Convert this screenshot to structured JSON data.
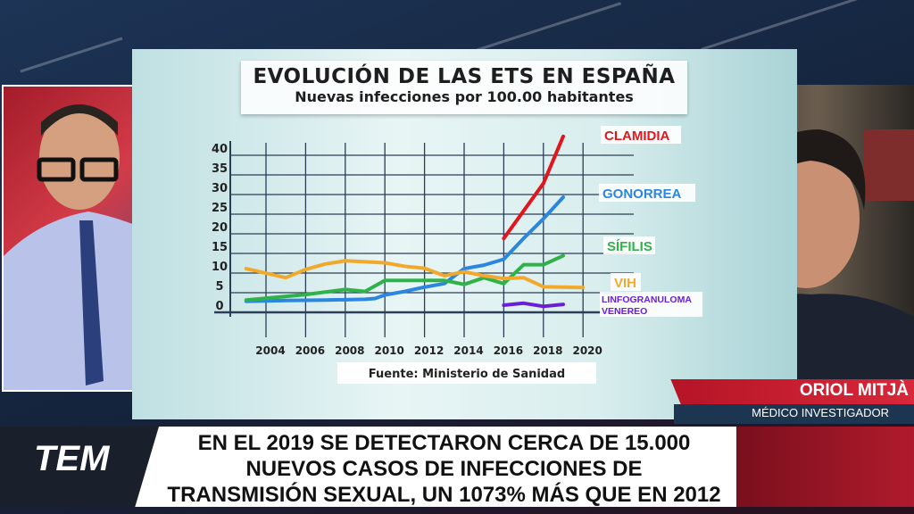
{
  "chart_data": {
    "type": "line",
    "title": "EVOLUCIÓN DE LAS ETS EN ESPAÑA",
    "subtitle": "Nuevas infecciones por 100.00 habitantes",
    "source": "Fuente: Ministerio de Sanidad",
    "x_ticks": [
      "2004",
      "2006",
      "2008",
      "2010",
      "2012",
      "2014",
      "2016",
      "2018",
      "2020"
    ],
    "y_ticks": [
      "0",
      "5",
      "10",
      "15",
      "20",
      "25",
      "30",
      "35",
      "40"
    ],
    "xlim": [
      2002.5,
      2021
    ],
    "ylim": [
      0,
      40
    ],
    "grid": true,
    "series": [
      {
        "name": "CLAMIDIA",
        "color": "#e0161c",
        "x": [
          2016,
          2018,
          2019
        ],
        "y": [
          17,
          31,
          43
        ]
      },
      {
        "name": "GONORREA",
        "color": "#2b86e0",
        "x": [
          2003,
          2005,
          2007,
          2009,
          2009.5,
          2010,
          2011,
          2012,
          2013,
          2014,
          2015,
          2016,
          2017,
          2018,
          2019
        ],
        "y": [
          1,
          1.2,
          1.3,
          1.5,
          1.7,
          2.6,
          3.5,
          4.6,
          5.5,
          9.3,
          10.2,
          11.7,
          17,
          22,
          27.5
        ]
      },
      {
        "name": "SÍFILIS",
        "color": "#2fb24a",
        "x": [
          2003,
          2006,
          2008,
          2009,
          2010,
          2013,
          2014,
          2015,
          2016,
          2017,
          2018,
          2019
        ],
        "y": [
          1.3,
          2.7,
          4,
          3.5,
          6.3,
          6.3,
          5.3,
          7,
          5.5,
          10.3,
          10.3,
          12.6
        ]
      },
      {
        "name": "VIH",
        "color": "#f0a92c",
        "x": [
          2003,
          2005,
          2006,
          2007,
          2008,
          2010,
          2011,
          2012,
          2013,
          2014,
          2015,
          2016,
          2017,
          2018,
          2020
        ],
        "y": [
          9.3,
          7,
          9.1,
          10.5,
          11.3,
          10.8,
          9.9,
          9.4,
          7.5,
          8.5,
          7.5,
          6.8,
          7,
          4.7,
          4.5
        ]
      },
      {
        "name": "LINFOGRANULOMA VENEREO",
        "color": "#6a1fd6",
        "x": [
          2016,
          2017,
          2018,
          2019
        ],
        "y": [
          0,
          0.5,
          -0.3,
          0.2
        ]
      }
    ]
  },
  "lower_third": {
    "name": "ORIOL MITJÀ",
    "role": "MÉDICO INVESTIGADOR"
  },
  "banner": {
    "logo": "TEM",
    "lines": [
      "EN EL 2019 SE DETECTARON CERCA DE 15.000",
      "NUEVOS CASOS DE INFECCIONES DE",
      "TRANSMISIÓN SEXUAL, UN 1073% MÁS QUE EN 2012"
    ]
  },
  "colors": {
    "accent_red": "#c41e30",
    "navy": "#1c3550"
  }
}
